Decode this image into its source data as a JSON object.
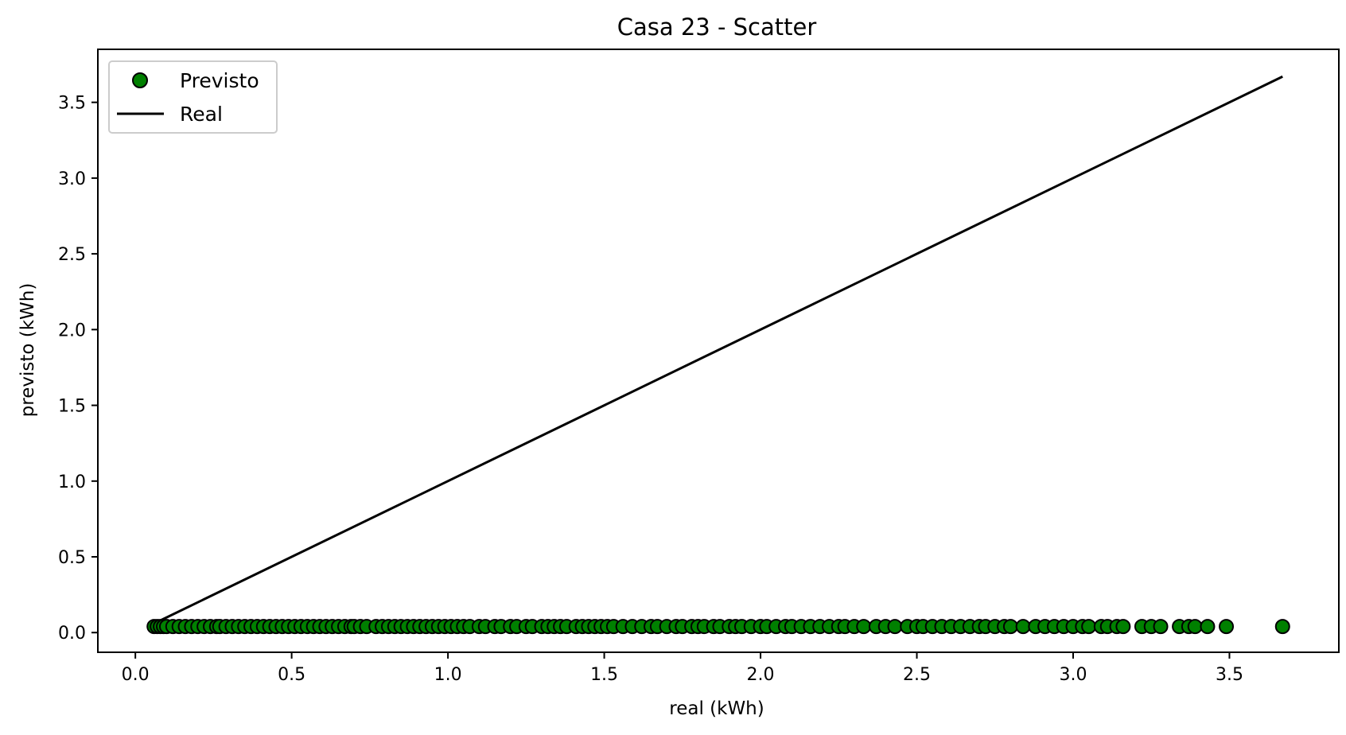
{
  "chart_data": {
    "type": "scatter",
    "title": "Casa 23 - Scatter",
    "xlabel": "real (kWh)",
    "ylabel": "previsto (kWh)",
    "xlim": [
      -0.12,
      3.85
    ],
    "ylim": [
      -0.13,
      3.85
    ],
    "xticks": [
      0.0,
      0.5,
      1.0,
      1.5,
      2.0,
      2.5,
      3.0,
      3.5
    ],
    "xtick_labels": [
      "0.0",
      "0.5",
      "1.0",
      "1.5",
      "2.0",
      "2.5",
      "3.0",
      "3.5"
    ],
    "yticks": [
      0.0,
      0.5,
      1.0,
      1.5,
      2.0,
      2.5,
      3.0,
      3.5
    ],
    "ytick_labels": [
      "0.0",
      "0.5",
      "1.0",
      "1.5",
      "2.0",
      "2.5",
      "3.0",
      "3.5"
    ],
    "grid": false,
    "legend_position": "top-left",
    "series": [
      {
        "name": "Previsto",
        "kind": "scatter",
        "color": "#008000",
        "edgecolor": "#000000",
        "x": [
          0.06,
          0.07,
          0.08,
          0.09,
          0.1,
          0.12,
          0.14,
          0.16,
          0.18,
          0.2,
          0.22,
          0.24,
          0.26,
          0.27,
          0.29,
          0.31,
          0.33,
          0.35,
          0.37,
          0.39,
          0.41,
          0.43,
          0.45,
          0.47,
          0.49,
          0.51,
          0.53,
          0.55,
          0.57,
          0.59,
          0.61,
          0.63,
          0.65,
          0.67,
          0.69,
          0.7,
          0.72,
          0.74,
          0.77,
          0.79,
          0.81,
          0.83,
          0.85,
          0.87,
          0.89,
          0.91,
          0.93,
          0.95,
          0.97,
          0.99,
          1.01,
          1.03,
          1.05,
          1.07,
          1.1,
          1.12,
          1.15,
          1.17,
          1.2,
          1.22,
          1.25,
          1.27,
          1.3,
          1.32,
          1.34,
          1.36,
          1.38,
          1.41,
          1.43,
          1.45,
          1.47,
          1.49,
          1.51,
          1.53,
          1.56,
          1.59,
          1.62,
          1.65,
          1.67,
          1.7,
          1.73,
          1.75,
          1.78,
          1.8,
          1.82,
          1.85,
          1.87,
          1.9,
          1.92,
          1.94,
          1.97,
          2.0,
          2.02,
          2.05,
          2.08,
          2.1,
          2.13,
          2.16,
          2.19,
          2.22,
          2.25,
          2.27,
          2.3,
          2.33,
          2.37,
          2.4,
          2.43,
          2.47,
          2.5,
          2.52,
          2.55,
          2.58,
          2.61,
          2.64,
          2.67,
          2.7,
          2.72,
          2.75,
          2.78,
          2.8,
          2.84,
          2.88,
          2.91,
          2.94,
          2.97,
          3.0,
          3.03,
          3.05,
          3.09,
          3.11,
          3.14,
          3.16,
          3.22,
          3.25,
          3.28,
          3.34,
          3.37,
          3.39,
          3.43,
          3.49,
          3.67
        ],
        "y": [
          0.04,
          0.04,
          0.04,
          0.04,
          0.04,
          0.04,
          0.04,
          0.04,
          0.04,
          0.04,
          0.04,
          0.04,
          0.04,
          0.04,
          0.04,
          0.04,
          0.04,
          0.04,
          0.04,
          0.04,
          0.04,
          0.04,
          0.04,
          0.04,
          0.04,
          0.04,
          0.04,
          0.04,
          0.04,
          0.04,
          0.04,
          0.04,
          0.04,
          0.04,
          0.04,
          0.04,
          0.04,
          0.04,
          0.04,
          0.04,
          0.04,
          0.04,
          0.04,
          0.04,
          0.04,
          0.04,
          0.04,
          0.04,
          0.04,
          0.04,
          0.04,
          0.04,
          0.04,
          0.04,
          0.04,
          0.04,
          0.04,
          0.04,
          0.04,
          0.04,
          0.04,
          0.04,
          0.04,
          0.04,
          0.04,
          0.04,
          0.04,
          0.04,
          0.04,
          0.04,
          0.04,
          0.04,
          0.04,
          0.04,
          0.04,
          0.04,
          0.04,
          0.04,
          0.04,
          0.04,
          0.04,
          0.04,
          0.04,
          0.04,
          0.04,
          0.04,
          0.04,
          0.04,
          0.04,
          0.04,
          0.04,
          0.04,
          0.04,
          0.04,
          0.04,
          0.04,
          0.04,
          0.04,
          0.04,
          0.04,
          0.04,
          0.04,
          0.04,
          0.04,
          0.04,
          0.04,
          0.04,
          0.04,
          0.04,
          0.04,
          0.04,
          0.04,
          0.04,
          0.04,
          0.04,
          0.04,
          0.04,
          0.04,
          0.04,
          0.04,
          0.04,
          0.04,
          0.04,
          0.04,
          0.04,
          0.04,
          0.04,
          0.04,
          0.04,
          0.04,
          0.04,
          0.04,
          0.04,
          0.04,
          0.04,
          0.04,
          0.04,
          0.04,
          0.04,
          0.04,
          0.04
        ]
      },
      {
        "name": "Real",
        "kind": "line",
        "color": "#000000",
        "x": [
          0.08,
          3.67
        ],
        "y": [
          0.08,
          3.67
        ]
      }
    ]
  }
}
